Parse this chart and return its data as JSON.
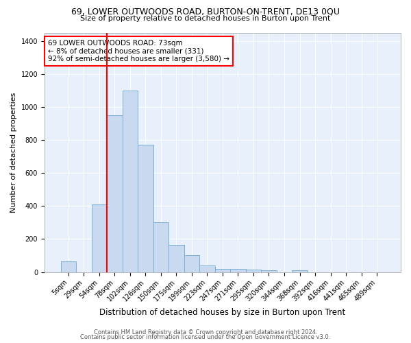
{
  "title1": "69, LOWER OUTWOODS ROAD, BURTON-ON-TRENT, DE13 0QU",
  "title2": "Size of property relative to detached houses in Burton upon Trent",
  "xlabel": "Distribution of detached houses by size in Burton upon Trent",
  "ylabel": "Number of detached properties",
  "footnote1": "Contains HM Land Registry data © Crown copyright and database right 2024.",
  "footnote2": "Contains public sector information licensed under the Open Government Licence v3.0.",
  "bar_labels": [
    "5sqm",
    "29sqm",
    "54sqm",
    "78sqm",
    "102sqm",
    "126sqm",
    "150sqm",
    "175sqm",
    "199sqm",
    "223sqm",
    "247sqm",
    "271sqm",
    "295sqm",
    "320sqm",
    "344sqm",
    "368sqm",
    "392sqm",
    "416sqm",
    "441sqm",
    "465sqm",
    "489sqm"
  ],
  "bar_values": [
    65,
    0,
    410,
    950,
    1100,
    770,
    300,
    165,
    100,
    40,
    18,
    20,
    15,
    10,
    0,
    12,
    0,
    0,
    0,
    0,
    0
  ],
  "bar_color": "#c9d9f0",
  "bar_edge_color": "#7bafd4",
  "vline_x_index": 3,
  "vline_color": "red",
  "annotation_text": "69 LOWER OUTWOODS ROAD: 73sqm\n← 8% of detached houses are smaller (331)\n92% of semi-detached houses are larger (3,580) →",
  "ylim": [
    0,
    1450
  ],
  "yticks": [
    0,
    200,
    400,
    600,
    800,
    1000,
    1200,
    1400
  ],
  "bg_color": "#e8f0fb",
  "grid_color": "white",
  "title1_fontsize": 9,
  "title2_fontsize": 8,
  "ylabel_fontsize": 8,
  "xlabel_fontsize": 8.5,
  "tick_fontsize": 7,
  "footnote_fontsize": 6
}
